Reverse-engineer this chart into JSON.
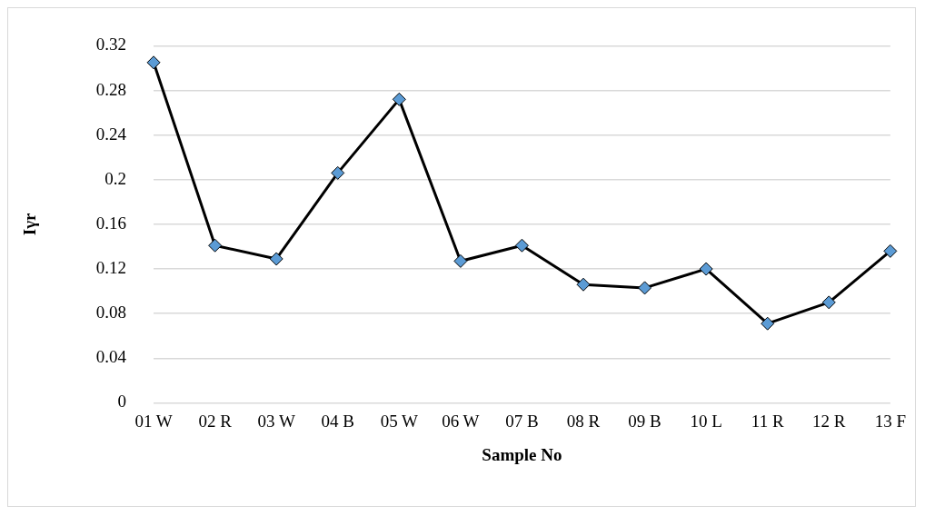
{
  "chart_data": {
    "type": "line",
    "xlabel": "Sample No",
    "ylabel": "Iγr",
    "categories": [
      "01 W",
      "02 R",
      "03 W",
      "04 B",
      "05 W",
      "06 W",
      "07 B",
      "08 R",
      "09 B",
      "10 L",
      "11 R",
      "12 R",
      "13 F"
    ],
    "series": [
      {
        "color": "#000000",
        "values": [
          0.305,
          0.141,
          0.129,
          0.206,
          0.272,
          0.127,
          0.141,
          0.106,
          0.103,
          0.12,
          0.071,
          0.09,
          0.136
        ]
      }
    ],
    "ylim": [
      0,
      0.32
    ],
    "yticks": [
      0,
      0.04,
      0.08,
      0.12,
      0.16,
      0.2,
      0.24,
      0.28,
      0.32
    ],
    "grid": "y",
    "legend": false,
    "marker": "diamond",
    "line_style": "solid"
  }
}
